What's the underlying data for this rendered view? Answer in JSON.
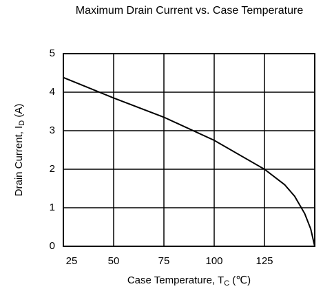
{
  "chart_data": {
    "type": "line",
    "title": "Maximum Drain Current vs. Case Temperature",
    "xlabel": [
      "Case Temperature, T",
      "C",
      " (℃)"
    ],
    "ylabel": [
      "Drain Current, I",
      "D",
      " (A)"
    ],
    "x": [
      25,
      50,
      75,
      100,
      125,
      135,
      140,
      145,
      148,
      150
    ],
    "series": [
      {
        "color": "#000000",
        "values": [
          4.38,
          3.85,
          3.35,
          2.75,
          2.0,
          1.6,
          1.3,
          0.85,
          0.45,
          0
        ]
      }
    ],
    "xlim": [
      25,
      150
    ],
    "xticks": [
      25,
      50,
      75,
      100,
      125
    ],
    "ylim": [
      0,
      5
    ],
    "yticks": [
      0,
      1,
      2,
      3,
      4,
      5
    ],
    "grid": true
  }
}
